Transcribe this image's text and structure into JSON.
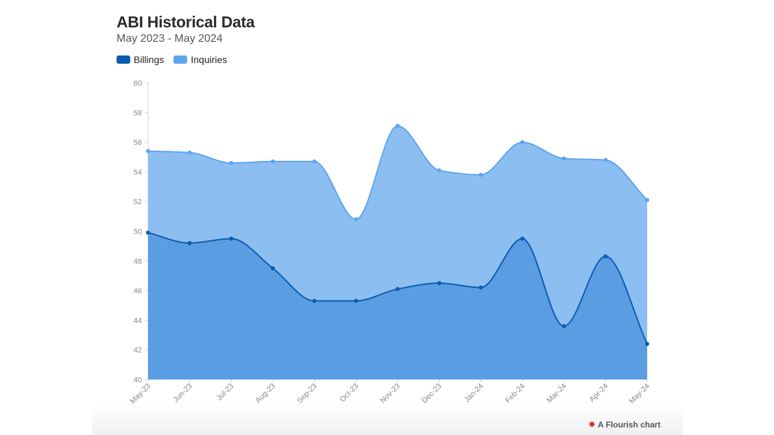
{
  "chart_data": {
    "type": "area",
    "title": "ABI Historical Data",
    "subtitle": "May 2023 - May 2024",
    "categories": [
      "May-23",
      "Jun-23",
      "Jul-23",
      "Aug-23",
      "Sep-23",
      "Oct-23",
      "Nov-23",
      "Dec-23",
      "Jan-24",
      "Feb-24",
      "Mar-24",
      "Apr-24",
      "May-24"
    ],
    "series": [
      {
        "name": "Billings",
        "color": "#0b5cad",
        "fill": "#5b9de2",
        "values": [
          49.9,
          49.2,
          49.5,
          47.5,
          45.3,
          45.3,
          46.1,
          46.5,
          46.2,
          49.5,
          43.6,
          48.3,
          42.4
        ]
      },
      {
        "name": "Inquiries",
        "color": "#5aa6ec",
        "fill": "#8dbef2",
        "values": [
          55.4,
          55.3,
          54.6,
          54.7,
          54.7,
          50.8,
          57.1,
          54.1,
          53.8,
          56.0,
          54.9,
          54.8,
          52.1
        ]
      }
    ],
    "ylim": [
      40,
      60
    ],
    "yticks": [
      40,
      42,
      44,
      46,
      48,
      50,
      52,
      54,
      56,
      58,
      60
    ],
    "xlabel": "",
    "ylabel": "",
    "legend": "top-left",
    "grid": false
  },
  "credit": {
    "label": "A Flourish chart",
    "icon": "flourish-logo-icon"
  }
}
